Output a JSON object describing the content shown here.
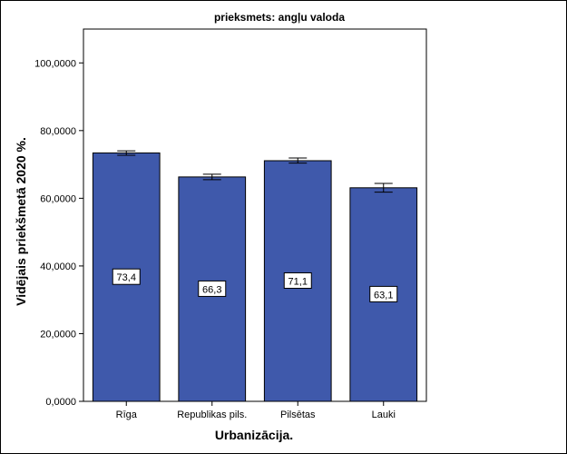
{
  "chart_data": {
    "type": "bar",
    "title": "prieksmets: angļu valoda",
    "xlabel": "Urbanizācija.",
    "ylabel": "Vidējais priekšmetā 2020 %.",
    "categories": [
      "Rīga",
      "Republikas pils.",
      "Pilsētas",
      "Lauki"
    ],
    "values": [
      73.4,
      66.3,
      71.1,
      63.1
    ],
    "data_labels": [
      "73,4",
      "66,3",
      "71,1",
      "63,1"
    ],
    "error_low": [
      72.7,
      65.5,
      70.4,
      61.8
    ],
    "error_high": [
      74.0,
      67.1,
      71.9,
      64.4
    ],
    "ylim": [
      0,
      110
    ],
    "yticks": [
      0,
      20,
      40,
      60,
      80,
      100
    ],
    "ytick_labels": [
      "0,0000",
      "20,0000",
      "40,0000",
      "60,0000",
      "80,0000",
      "100,0000"
    ],
    "bar_color": "#3f59ab",
    "grid": false,
    "legend": "none"
  }
}
